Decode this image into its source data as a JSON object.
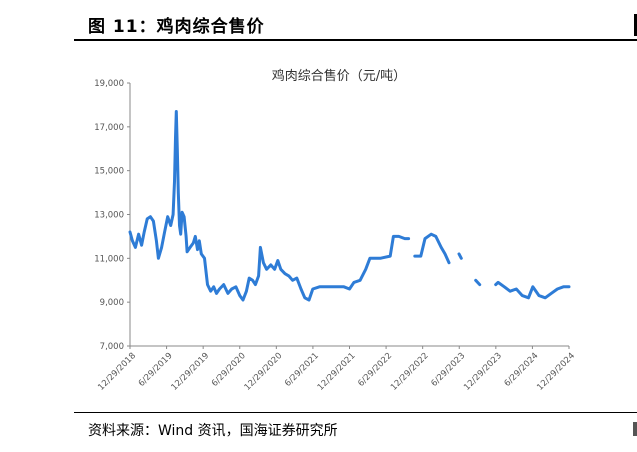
{
  "figure": {
    "title": "图 11：鸡肉综合售价",
    "source": "资料来源：Wind 资讯，国海证券研究所"
  },
  "chart_data": {
    "type": "line",
    "title": "鸡肉综合售价（元/吨）",
    "xlabel": "",
    "ylabel": "",
    "ylim": [
      7000,
      19000
    ],
    "yticks": [
      7000,
      9000,
      11000,
      13000,
      15000,
      17000,
      19000
    ],
    "ytick_labels": [
      "7,000",
      "9,000",
      "11,000",
      "13,000",
      "15,000",
      "17,000",
      "19,000"
    ],
    "x_range": [
      "2018-12-29",
      "2024-12-29"
    ],
    "xtick_labels": [
      "12/29/2018",
      "6/29/2019",
      "12/29/2019",
      "6/29/2020",
      "12/29/2020",
      "6/29/2021",
      "12/29/2021",
      "6/29/2022",
      "12/29/2022",
      "6/29/2023",
      "12/29/2023",
      "6/29/2024",
      "12/29/2024"
    ],
    "grid": false,
    "legend": "none",
    "line_color": "#2e7cd6",
    "series": [
      {
        "segments": [
          [
            [
              "2018-12-29",
              12200
            ],
            [
              "2019-01-10",
              11800
            ],
            [
              "2019-01-25",
              11500
            ],
            [
              "2019-02-10",
              12100
            ],
            [
              "2019-02-25",
              11600
            ],
            [
              "2019-03-10",
              12200
            ],
            [
              "2019-03-25",
              12800
            ],
            [
              "2019-04-10",
              12900
            ],
            [
              "2019-04-25",
              12700
            ],
            [
              "2019-05-10",
              11800
            ],
            [
              "2019-05-20",
              11000
            ],
            [
              "2019-06-05",
              11500
            ],
            [
              "2019-06-20",
              12200
            ],
            [
              "2019-07-05",
              12900
            ],
            [
              "2019-07-20",
              12500
            ],
            [
              "2019-08-01",
              13000
            ],
            [
              "2019-08-08",
              14500
            ],
            [
              "2019-08-13",
              16500
            ],
            [
              "2019-08-17",
              17700
            ],
            [
              "2019-08-22",
              16000
            ],
            [
              "2019-08-27",
              14000
            ],
            [
              "2019-09-02",
              12500
            ],
            [
              "2019-09-08",
              12100
            ],
            [
              "2019-09-15",
              13100
            ],
            [
              "2019-09-25",
              12900
            ],
            [
              "2019-10-05",
              12000
            ],
            [
              "2019-10-10",
              11300
            ],
            [
              "2019-10-25",
              11500
            ],
            [
              "2019-11-10",
              11700
            ],
            [
              "2019-11-20",
              12000
            ],
            [
              "2019-12-01",
              11400
            ],
            [
              "2019-12-10",
              11800
            ],
            [
              "2019-12-20",
              11200
            ],
            [
              "2020-01-05",
              11000
            ],
            [
              "2020-01-20",
              9800
            ],
            [
              "2020-02-05",
              9500
            ],
            [
              "2020-02-20",
              9700
            ],
            [
              "2020-03-05",
              9400
            ],
            [
              "2020-03-20",
              9600
            ],
            [
              "2020-04-10",
              9800
            ],
            [
              "2020-05-01",
              9400
            ],
            [
              "2020-05-20",
              9600
            ],
            [
              "2020-06-10",
              9700
            ],
            [
              "2020-06-29",
              9300
            ],
            [
              "2020-07-15",
              9100
            ],
            [
              "2020-08-01",
              9500
            ],
            [
              "2020-08-15",
              10100
            ],
            [
              "2020-09-01",
              10000
            ],
            [
              "2020-09-15",
              9800
            ],
            [
              "2020-10-01",
              10200
            ],
            [
              "2020-10-10",
              11500
            ],
            [
              "2020-10-25",
              10800
            ],
            [
              "2020-11-10",
              10500
            ],
            [
              "2020-12-01",
              10700
            ],
            [
              "2020-12-20",
              10500
            ],
            [
              "2021-01-05",
              10900
            ],
            [
              "2021-01-20",
              10500
            ],
            [
              "2021-02-10",
              10300
            ],
            [
              "2021-03-01",
              10200
            ],
            [
              "2021-03-20",
              10000
            ],
            [
              "2021-04-10",
              10100
            ],
            [
              "2021-05-01",
              9600
            ],
            [
              "2021-05-20",
              9200
            ],
            [
              "2021-06-10",
              9100
            ],
            [
              "2021-06-29",
              9600
            ],
            [
              "2021-08-01",
              9700
            ],
            [
              "2021-10-01",
              9700
            ],
            [
              "2021-12-01",
              9700
            ],
            [
              "2021-12-29",
              9600
            ],
            [
              "2022-01-20",
              9900
            ],
            [
              "2022-02-20",
              10000
            ],
            [
              "2022-03-20",
              10500
            ],
            [
              "2022-04-10",
              11000
            ],
            [
              "2022-06-01",
              11000
            ],
            [
              "2022-07-20",
              11100
            ],
            [
              "2022-08-05",
              12000
            ],
            [
              "2022-09-01",
              12000
            ],
            [
              "2022-10-01",
              11900
            ],
            [
              "2022-10-20",
              11900
            ]
          ],
          [
            [
              "2022-11-20",
              11100
            ],
            [
              "2022-12-20",
              11100
            ],
            [
              "2023-01-10",
              11900
            ],
            [
              "2023-02-10",
              12100
            ],
            [
              "2023-03-05",
              12000
            ],
            [
              "2023-04-01",
              11500
            ],
            [
              "2023-04-20",
              11200
            ],
            [
              "2023-05-10",
              10800
            ]
          ],
          [
            [
              "2023-06-29",
              11200
            ],
            [
              "2023-07-10",
              11000
            ]
          ],
          [
            [
              "2023-09-20",
              10000
            ],
            [
              "2023-10-10",
              9800
            ]
          ],
          [
            [
              "2023-12-29",
              9800
            ],
            [
              "2024-01-10",
              9900
            ],
            [
              "2024-02-10",
              9700
            ],
            [
              "2024-03-10",
              9500
            ],
            [
              "2024-04-10",
              9600
            ],
            [
              "2024-05-10",
              9300
            ],
            [
              "2024-06-10",
              9200
            ],
            [
              "2024-07-01",
              9700
            ],
            [
              "2024-08-01",
              9300
            ],
            [
              "2024-09-01",
              9200
            ],
            [
              "2024-10-01",
              9400
            ],
            [
              "2024-11-01",
              9600
            ],
            [
              "2024-12-01",
              9700
            ],
            [
              "2024-12-29",
              9700
            ]
          ]
        ]
      }
    ]
  }
}
